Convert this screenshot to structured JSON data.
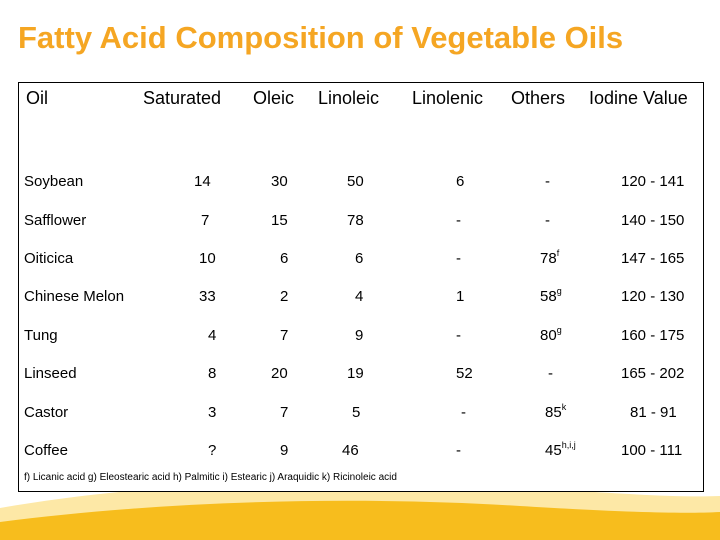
{
  "title": "Fatty Acid Composition of Vegetable Oils",
  "headers": [
    "Oil",
    "Saturated",
    "Oleic",
    "Linoleic",
    "Linolenic",
    "Others",
    "Iodine Value"
  ],
  "rows": [
    {
      "oil": "Soybean",
      "saturated": "14",
      "oleic": "30",
      "linoleic": "50",
      "linolenic": "6",
      "others": "-",
      "others_sup": "",
      "iodine": "120 - 141"
    },
    {
      "oil": "Safflower",
      "saturated": "7",
      "oleic": "15",
      "linoleic": "78",
      "linolenic": "-",
      "others": "-",
      "others_sup": "",
      "iodine": "140 - 150"
    },
    {
      "oil": "Oiticica",
      "saturated": "10",
      "oleic": "6",
      "linoleic": "6",
      "linolenic": "-",
      "others": "78",
      "others_sup": "f",
      "iodine": "147 - 165"
    },
    {
      "oil": "Chinese Melon",
      "saturated": "33",
      "oleic": "2",
      "linoleic": "4",
      "linolenic": "1",
      "others": "58",
      "others_sup": "g",
      "iodine": "120 - 130"
    },
    {
      "oil": "Tung",
      "saturated": "4",
      "oleic": "7",
      "linoleic": "9",
      "linolenic": "-",
      "others": "80",
      "others_sup": "g",
      "iodine": "160 - 175"
    },
    {
      "oil": "Linseed",
      "saturated": "8",
      "oleic": "20",
      "linoleic": "19",
      "linolenic": "52",
      "others": "-",
      "others_sup": "",
      "iodine": "165 - 202"
    },
    {
      "oil": "Castor",
      "saturated": "3",
      "oleic": "7",
      "linoleic": "5",
      "linolenic": "-",
      "others": "85",
      "others_sup": "k",
      "iodine": "81 - 91"
    },
    {
      "oil": "Coffee",
      "saturated": "?",
      "oleic": "9",
      "linoleic": "46",
      "linolenic": "-",
      "others": "45",
      "others_sup": "h,i,j",
      "iodine": "100 - 111"
    }
  ],
  "footnote": "f) Licanic acid  g) Eleostearic acid  h) Palmitic  i) Estearic  j) Araquidic k) Ricinoleic acid",
  "colors": {
    "title": "#f5a623",
    "wave_light": "#fde8a6",
    "wave_dark": "#f7bd1d"
  }
}
